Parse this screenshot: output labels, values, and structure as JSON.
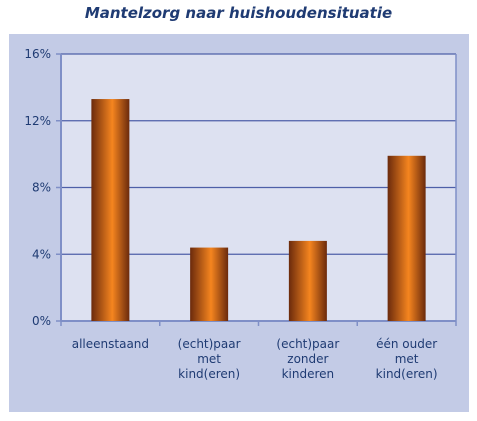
{
  "chart_data": {
    "type": "bar",
    "title": "Mantelzorg naar huishoudensituatie",
    "xlabel": "",
    "ylabel": "",
    "categories": [
      [
        "alleenstaand"
      ],
      [
        "(echt)paar",
        "met",
        "kind(eren)"
      ],
      [
        "(echt)paar",
        "zonder",
        "kinderen"
      ],
      [
        "één ouder",
        "met",
        "kind(eren)"
      ]
    ],
    "values": [
      13.3,
      4.4,
      4.8,
      9.9
    ],
    "ylim": [
      0,
      16
    ],
    "yticks": [
      0,
      4,
      8,
      12,
      16
    ],
    "ytick_labels": [
      "0%",
      "4%",
      "8%",
      "12%",
      "16%"
    ],
    "grid": true,
    "legend": "none",
    "colors": {
      "bar_dark": "#6b2a0c",
      "bar_light": "#f5851f",
      "plot_background": "#dde1f1",
      "panel_background": "#c3cbe6",
      "axis_line": "#7f8fc7",
      "gridline": "#4e5fa8",
      "text": "#1f3b73"
    }
  }
}
